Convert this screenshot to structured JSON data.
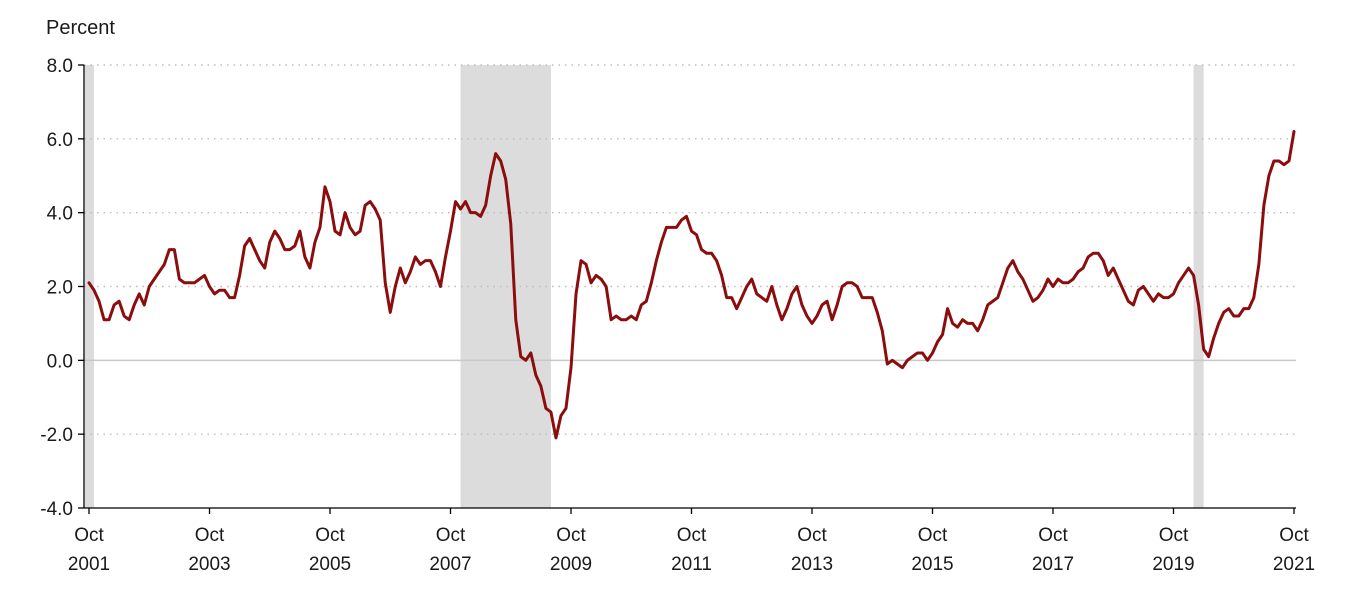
{
  "chart_data": {
    "type": "line",
    "ylabel": "Percent",
    "ylim": [
      -4.0,
      8.0
    ],
    "yticks": [
      "8.0",
      "6.0",
      "4.0",
      "2.0",
      "0.0",
      "-2.0",
      "-4.0"
    ],
    "xticks": [
      {
        "month": "Oct",
        "year": "2001"
      },
      {
        "month": "Oct",
        "year": "2003"
      },
      {
        "month": "Oct",
        "year": "2005"
      },
      {
        "month": "Oct",
        "year": "2007"
      },
      {
        "month": "Oct",
        "year": "2009"
      },
      {
        "month": "Oct",
        "year": "2011"
      },
      {
        "month": "Oct",
        "year": "2013"
      },
      {
        "month": "Oct",
        "year": "2015"
      },
      {
        "month": "Oct",
        "year": "2017"
      },
      {
        "month": "Oct",
        "year": "2019"
      },
      {
        "month": "Oct",
        "year": "2021"
      }
    ],
    "grid": "horizontal-dotted",
    "colors": {
      "line": "#8b0d0d",
      "recession": "#dcdcdc",
      "grid": "#bdbdbd",
      "zero_line": "#c8c8c8"
    },
    "recessions": [
      {
        "start": "2001-03",
        "end": "2001-11"
      },
      {
        "start": "2007-12",
        "end": "2009-06"
      },
      {
        "start": "2020-02",
        "end": "2020-04"
      }
    ],
    "series": [
      {
        "start": "2001-10",
        "frequency": "monthly",
        "values": [
          2.1,
          1.9,
          1.6,
          1.1,
          1.1,
          1.5,
          1.6,
          1.2,
          1.1,
          1.5,
          1.8,
          1.5,
          2.0,
          2.2,
          2.4,
          2.6,
          3.0,
          3.0,
          2.2,
          2.1,
          2.1,
          2.1,
          2.2,
          2.3,
          2.0,
          1.8,
          1.9,
          1.9,
          1.7,
          1.7,
          2.3,
          3.1,
          3.3,
          3.0,
          2.7,
          2.5,
          3.2,
          3.5,
          3.3,
          3.0,
          3.0,
          3.1,
          3.5,
          2.8,
          2.5,
          3.2,
          3.6,
          4.7,
          4.3,
          3.5,
          3.4,
          4.0,
          3.6,
          3.4,
          3.5,
          4.2,
          4.3,
          4.1,
          3.8,
          2.1,
          1.3,
          2.0,
          2.5,
          2.1,
          2.4,
          2.8,
          2.6,
          2.7,
          2.7,
          2.4,
          2.0,
          2.8,
          3.5,
          4.3,
          4.1,
          4.3,
          4.0,
          4.0,
          3.9,
          4.2,
          5.0,
          5.6,
          5.4,
          4.9,
          3.7,
          1.1,
          0.1,
          0.0,
          0.2,
          -0.4,
          -0.7,
          -1.3,
          -1.4,
          -2.1,
          -1.5,
          -1.3,
          -0.2,
          1.8,
          2.7,
          2.6,
          2.1,
          2.3,
          2.2,
          2.0,
          1.1,
          1.2,
          1.1,
          1.1,
          1.2,
          1.1,
          1.5,
          1.6,
          2.1,
          2.7,
          3.2,
          3.6,
          3.6,
          3.6,
          3.8,
          3.9,
          3.5,
          3.4,
          3.0,
          2.9,
          2.9,
          2.7,
          2.3,
          1.7,
          1.7,
          1.4,
          1.7,
          2.0,
          2.2,
          1.8,
          1.7,
          1.6,
          2.0,
          1.5,
          1.1,
          1.4,
          1.8,
          2.0,
          1.5,
          1.2,
          1.0,
          1.2,
          1.5,
          1.6,
          1.1,
          1.5,
          2.0,
          2.1,
          2.1,
          2.0,
          1.7,
          1.7,
          1.7,
          1.3,
          0.8,
          -0.1,
          0.0,
          -0.1,
          -0.2,
          0.0,
          0.1,
          0.2,
          0.2,
          0.0,
          0.2,
          0.5,
          0.7,
          1.4,
          1.0,
          0.9,
          1.1,
          1.0,
          1.0,
          0.8,
          1.1,
          1.5,
          1.6,
          1.7,
          2.1,
          2.5,
          2.7,
          2.4,
          2.2,
          1.9,
          1.6,
          1.7,
          1.9,
          2.2,
          2.0,
          2.2,
          2.1,
          2.1,
          2.2,
          2.4,
          2.5,
          2.8,
          2.9,
          2.9,
          2.7,
          2.3,
          2.5,
          2.2,
          1.9,
          1.6,
          1.5,
          1.9,
          2.0,
          1.8,
          1.6,
          1.8,
          1.7,
          1.7,
          1.8,
          2.1,
          2.3,
          2.5,
          2.3,
          1.5,
          0.3,
          0.1,
          0.6,
          1.0,
          1.3,
          1.4,
          1.2,
          1.2,
          1.4,
          1.4,
          1.7,
          2.6,
          4.2,
          5.0,
          5.4,
          5.4,
          5.3,
          5.4,
          6.2
        ]
      }
    ]
  }
}
